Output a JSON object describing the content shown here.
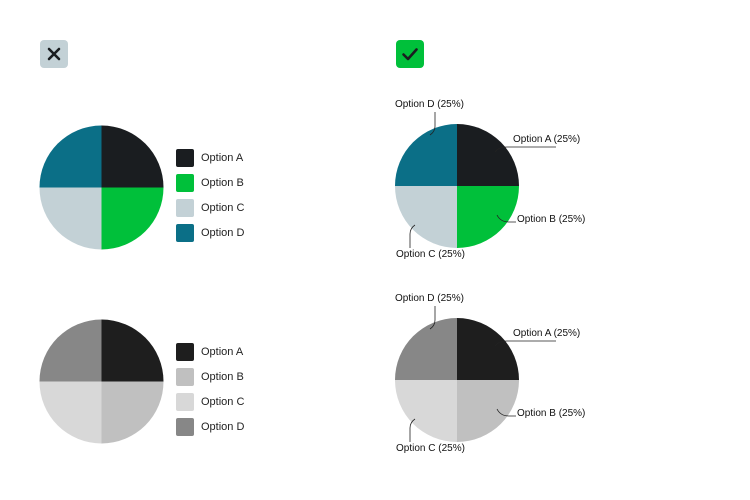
{
  "icons": {
    "dont": {
      "name": "close-icon",
      "bg": "#c3d1d6",
      "fg": "#1a1d20"
    },
    "do": {
      "name": "checkmark-icon",
      "bg": "#00c03a",
      "fg": "#1a1d20"
    }
  },
  "chart_data": [
    {
      "type": "pie",
      "categories": [
        "Option A",
        "Option B",
        "Option C",
        "Option D"
      ],
      "values": [
        25,
        25,
        25,
        25
      ],
      "colors": [
        "#1a1d20",
        "#00c03a",
        "#c3d1d6",
        "#0b6f87"
      ],
      "legend": "right"
    },
    {
      "type": "pie",
      "categories": [
        "Option A",
        "Option B",
        "Option C",
        "Option D"
      ],
      "values": [
        25,
        25,
        25,
        25
      ],
      "colors": [
        "#1a1d20",
        "#00c03a",
        "#c3d1d6",
        "#0b6f87"
      ],
      "labels": [
        "Option A (25%)",
        "Option B (25%)",
        "Option C (25%)",
        "Option D (25%)"
      ]
    },
    {
      "type": "pie",
      "categories": [
        "Option A",
        "Option B",
        "Option C",
        "Option D"
      ],
      "values": [
        25,
        25,
        25,
        25
      ],
      "colors": [
        "#1e1e1e",
        "#c0c0c0",
        "#d8d8d8",
        "#878787"
      ],
      "legend": "right"
    },
    {
      "type": "pie",
      "categories": [
        "Option A",
        "Option B",
        "Option C",
        "Option D"
      ],
      "values": [
        25,
        25,
        25,
        25
      ],
      "colors": [
        "#1e1e1e",
        "#c0c0c0",
        "#d8d8d8",
        "#878787"
      ],
      "labels": [
        "Option A (25%)",
        "Option B (25%)",
        "Option C (25%)",
        "Option D (25%)"
      ]
    }
  ]
}
